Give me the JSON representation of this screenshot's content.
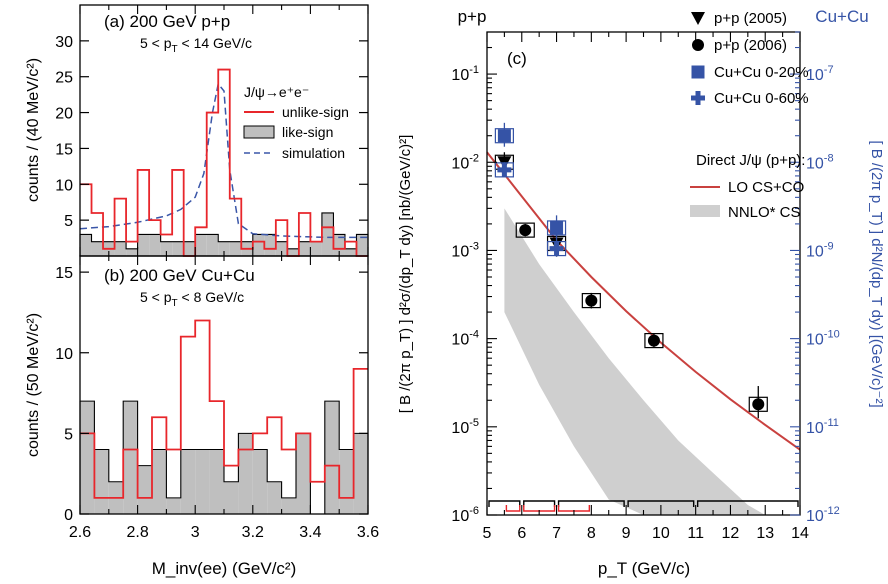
{
  "chart_data": [
    {
      "id": "a",
      "type": "line",
      "panel_label": "(a) 200 GeV p+p",
      "cut_label": "5 < p_T < 14 GeV/c",
      "ylabel": "counts / (40 MeV/c²)",
      "xlim": [
        2.6,
        3.6
      ],
      "ylim": [
        0,
        35
      ],
      "y_ticks": [
        5,
        10,
        15,
        20,
        25,
        30
      ],
      "legend_title": "J/ψ→e⁺e⁻",
      "legend_position": "top-right",
      "x_edges": [
        2.6,
        2.64,
        2.68,
        2.72,
        2.76,
        2.8,
        2.84,
        2.88,
        2.92,
        2.96,
        3.0,
        3.04,
        3.08,
        3.12,
        3.16,
        3.2,
        3.24,
        3.28,
        3.32,
        3.36,
        3.4,
        3.44,
        3.48,
        3.52,
        3.56,
        3.6
      ],
      "series": [
        {
          "name": "unlike-sign",
          "color": "#e8262b",
          "style": "step",
          "values": [
            10,
            6,
            1,
            8,
            2,
            12,
            5,
            3,
            12,
            0,
            4,
            20,
            26,
            8,
            1,
            2,
            1,
            5,
            0,
            6,
            2,
            4,
            1,
            2,
            0
          ]
        },
        {
          "name": "like-sign",
          "color": "#999999",
          "style": "filled-step",
          "values": [
            3,
            2,
            2,
            2,
            1,
            3,
            3,
            2,
            2,
            2,
            3,
            3,
            2,
            2,
            2,
            3,
            3,
            2,
            1,
            2,
            2,
            6,
            3,
            1,
            3
          ]
        },
        {
          "name": "simulation",
          "color": "#3a56a8",
          "style": "dashed",
          "x": [
            2.6,
            2.7,
            2.8,
            2.9,
            2.95,
            3.0,
            3.03,
            3.06,
            3.08,
            3.1,
            3.12,
            3.15,
            3.2,
            3.3,
            3.45,
            3.6
          ],
          "values": [
            3.8,
            4.1,
            4.7,
            5.6,
            6.5,
            8.2,
            11.5,
            20,
            24,
            23,
            12,
            4.5,
            3.1,
            2.8,
            2.6,
            2.6
          ]
        }
      ]
    },
    {
      "id": "b",
      "type": "line",
      "panel_label": "(b) 200 GeV Cu+Cu",
      "cut_label": "5 < p_T < 8 GeV/c",
      "ylabel": "counts / (50 MeV/c²)",
      "xlabel": "M_inv(ee) (GeV/c²)",
      "xlim": [
        2.6,
        3.6
      ],
      "ylim": [
        0,
        16
      ],
      "y_ticks": [
        0,
        5,
        10,
        15
      ],
      "x_ticks": [
        2.6,
        2.8,
        3.0,
        3.2,
        3.4,
        3.6
      ],
      "x_tick_labels": [
        "2.6",
        "2.8",
        "3",
        "3.2",
        "3.4",
        "3.6"
      ],
      "x_edges": [
        2.6,
        2.65,
        2.7,
        2.75,
        2.8,
        2.85,
        2.9,
        2.95,
        3.0,
        3.05,
        3.1,
        3.15,
        3.2,
        3.25,
        3.3,
        3.35,
        3.4,
        3.45,
        3.5,
        3.55,
        3.6
      ],
      "series": [
        {
          "name": "unlike-sign",
          "color": "#e8262b",
          "style": "step",
          "values": [
            5,
            1,
            1,
            4,
            1,
            6,
            4,
            11,
            12,
            7,
            3,
            4,
            5,
            6,
            4,
            5,
            2,
            3,
            1,
            9
          ]
        },
        {
          "name": "like-sign",
          "color": "#999999",
          "style": "filled-step",
          "values": [
            7,
            4,
            2,
            7,
            3,
            4,
            1,
            4,
            4,
            4,
            2,
            5,
            4,
            2,
            1,
            5,
            0,
            7,
            4,
            5
          ]
        }
      ]
    },
    {
      "id": "c",
      "type": "scatter",
      "panel_label": "(c)",
      "title_left": "p+p",
      "title_right": "Cu+Cu",
      "xlabel": "p_T (GeV/c)",
      "ylabel_left": "[ B /(2π p_T) ]  d²σ/(dp_T dy)  [nb/(GeV/c)²]",
      "ylabel_right": "[ B /(2π p_T) ]  d²N/(dp_T dy)  [(GeV/c)⁻²]",
      "scale_y": "log",
      "xlim": [
        5,
        14
      ],
      "ylim_left": [
        1e-06,
        0.3
      ],
      "ylim_right": [
        1e-12,
        3e-07
      ],
      "x_ticks": [
        5,
        6,
        7,
        8,
        9,
        10,
        11,
        12,
        13,
        14
      ],
      "y_left_ticks": [
        {
          "base": "10",
          "exp": "-6",
          "value": 1e-06
        },
        {
          "base": "10",
          "exp": "-5",
          "value": 1e-05
        },
        {
          "base": "10",
          "exp": "-4",
          "value": 0.0001
        },
        {
          "base": "10",
          "exp": "-3",
          "value": 0.001
        },
        {
          "base": "10",
          "exp": "-2",
          "value": 0.01
        },
        {
          "base": "10",
          "exp": "-1",
          "value": 0.1
        }
      ],
      "y_right_ticks": [
        {
          "base": "10",
          "exp": "-12",
          "value": 1e-12
        },
        {
          "base": "10",
          "exp": "-11",
          "value": 1e-11
        },
        {
          "base": "10",
          "exp": "-10",
          "value": 1e-10
        },
        {
          "base": "10",
          "exp": "-9",
          "value": 1e-09
        },
        {
          "base": "10",
          "exp": "-8",
          "value": 1e-08
        },
        {
          "base": "10",
          "exp": "-7",
          "value": 1e-07
        }
      ],
      "legend_position": "top-right",
      "legend_heading": "Direct J/ψ (p+p):",
      "series": [
        {
          "name": "p+p (2005)",
          "marker": "triangle-down",
          "color": "#000000",
          "x": [
            5.5,
            7.0
          ],
          "y": [
            0.01,
            0.0012
          ],
          "y_lo": [
            0.008,
            0.00085
          ],
          "y_hi": [
            0.013,
            0.0016
          ]
        },
        {
          "name": "p+p (2006)",
          "marker": "circle",
          "color": "#000000",
          "x": [
            6.1,
            8.0,
            9.8,
            12.8
          ],
          "y": [
            0.0017,
            0.00027,
            9.5e-05,
            1.8e-05
          ],
          "y_lo": [
            0.00145,
            0.00022,
            8e-05,
            1.25e-05
          ],
          "y_hi": [
            0.002,
            0.00033,
            0.000115,
            2.9e-05
          ]
        },
        {
          "name": "Cu+Cu 0-20%",
          "marker": "square",
          "color": "#3553a6",
          "axis": "right",
          "x": [
            5.5,
            7.0
          ],
          "y": [
            2e-08,
            1.8e-09
          ],
          "y_lo": [
            1.5e-08,
            1.3e-09
          ],
          "y_hi": [
            2.8e-08,
            2.5e-09
          ]
        },
        {
          "name": "Cu+Cu 0-60%",
          "marker": "cross",
          "color": "#3553a6",
          "axis": "right",
          "x": [
            5.5,
            7.0
          ],
          "y": [
            8.2e-09,
            1.05e-09
          ],
          "y_lo": [
            6.8e-09,
            8.5e-10
          ],
          "y_hi": [
            1e-08,
            1.3e-09
          ]
        },
        {
          "name": "LO CS+CO",
          "style": "line",
          "color": "#c9413f",
          "x": [
            5.0,
            6.0,
            7.0,
            8.0,
            9.0,
            10.0,
            11.0,
            12.0,
            13.0,
            14.0
          ],
          "y": [
            0.013,
            0.0041,
            0.0013,
            0.0005,
            0.000205,
            9e-05,
            4.2e-05,
            2.05e-05,
            1.05e-05,
            5.5e-06
          ]
        },
        {
          "name": "NNLO* CS",
          "style": "band",
          "color": "#cfcfcf",
          "x": [
            5.5,
            6.5,
            7.5,
            8.5,
            9.5,
            10.5,
            11.5,
            12.5,
            13.0
          ],
          "y_hi": [
            0.003,
            0.0007,
            0.0002,
            6e-05,
            2e-05,
            7e-06,
            3e-06,
            1.3e-06,
            1e-06
          ],
          "y_lo": [
            0.0002,
            3e-05,
            6e-06,
            1.5e-06,
            1e-06,
            1e-06,
            1e-06,
            1e-06,
            1e-06
          ]
        }
      ],
      "bin_brackets_black": [
        [
          5,
          6
        ],
        [
          6,
          7
        ],
        [
          7,
          9
        ],
        [
          9,
          11
        ],
        [
          11,
          14
        ]
      ],
      "bin_brackets_red": [
        [
          5.5,
          6
        ],
        [
          6,
          7
        ],
        [
          7,
          8
        ]
      ]
    }
  ]
}
